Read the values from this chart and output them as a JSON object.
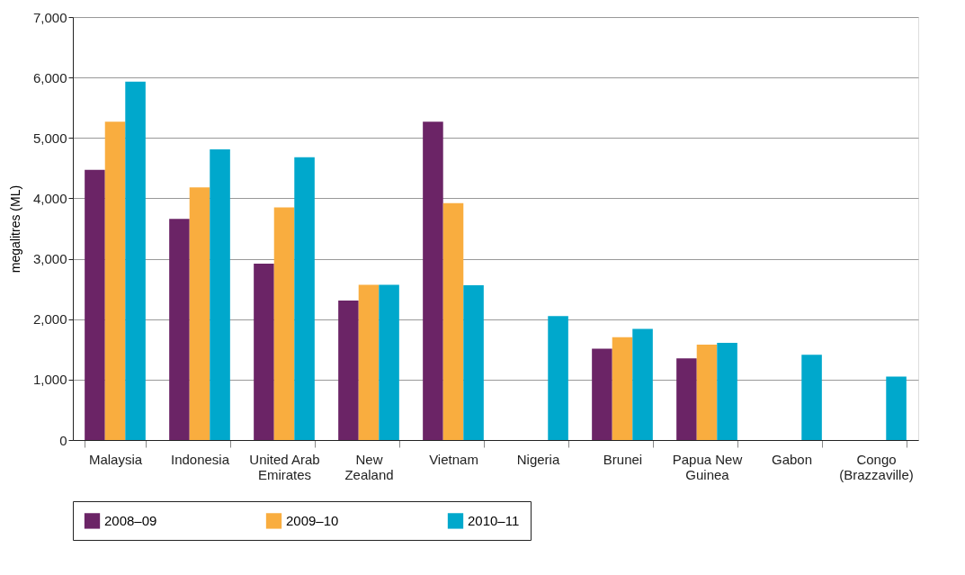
{
  "chart_data": {
    "type": "bar",
    "ylabel": "megalitres (ML)",
    "categories": [
      "Malaysia",
      "Indonesia",
      "United Arab\nEmirates",
      "New\nZealand",
      "Vietnam",
      "Nigeria",
      "Brunei",
      "Papua New\nGuinea",
      "Gabon",
      "Congo\n(Brazzaville)"
    ],
    "series": [
      {
        "name": "2008–09",
        "color": "#6b2466",
        "values": [
          4470,
          3660,
          2920,
          2310,
          5270,
          null,
          1510,
          1350,
          null,
          null
        ]
      },
      {
        "name": "2009–10",
        "color": "#f9ad3f",
        "values": [
          5270,
          4180,
          3850,
          2570,
          3920,
          null,
          1700,
          1580,
          null,
          null
        ]
      },
      {
        "name": "2010–11",
        "color": "#00a8cc",
        "values": [
          5930,
          4810,
          4680,
          2570,
          2560,
          2050,
          1840,
          1610,
          1410,
          1050
        ]
      }
    ],
    "ylim": [
      0,
      7000
    ],
    "yticks": [
      {
        "value": 0,
        "label": "0"
      },
      {
        "value": 1000,
        "label": "1,000"
      },
      {
        "value": 2000,
        "label": "2,000"
      },
      {
        "value": 3000,
        "label": "3,000"
      },
      {
        "value": 4000,
        "label": "4,000"
      },
      {
        "value": 5000,
        "label": "5,000"
      },
      {
        "value": 6000,
        "label": "6,000"
      },
      {
        "value": 7000,
        "label": "7,000"
      }
    ],
    "grid": "y",
    "legend": "bottom"
  }
}
